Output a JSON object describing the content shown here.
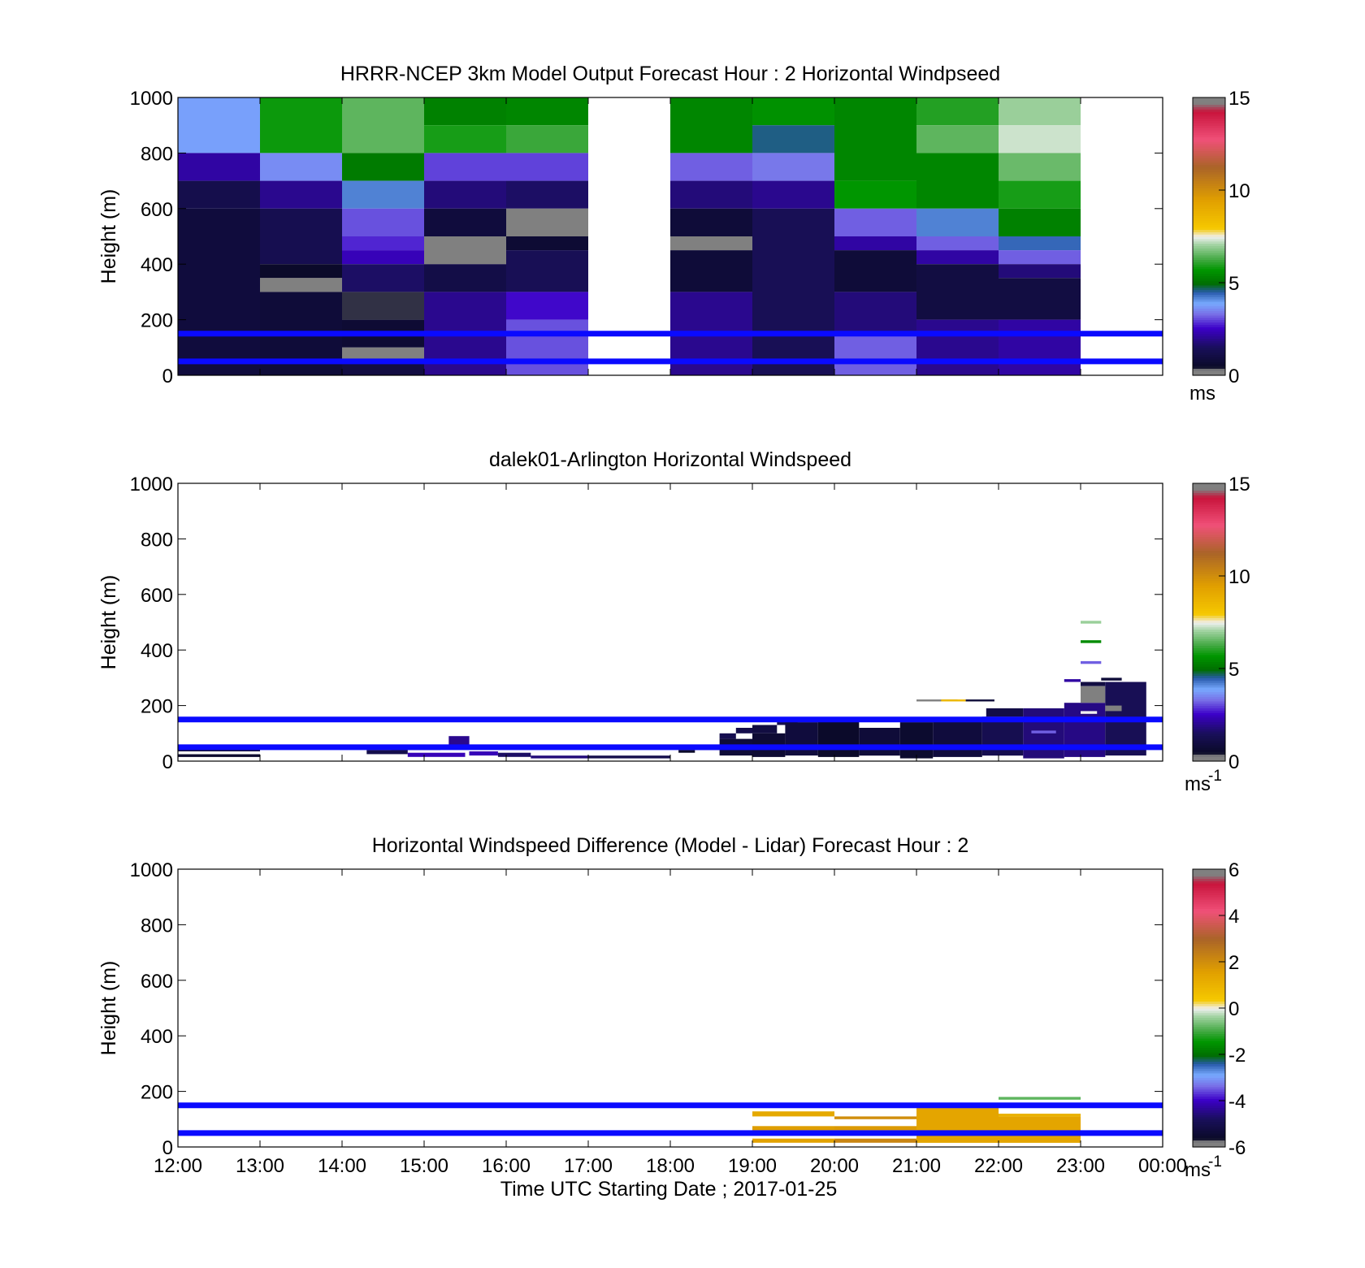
{
  "chart_data": [
    {
      "type": "heatmap",
      "title": "HRRR-NCEP 3km Model Output   Forecast Hour : 2 Horizontal Windpseed",
      "ylabel": "Height (m)",
      "xlabel": "",
      "ylim": [
        0,
        1000
      ],
      "xlim": [
        "12:00",
        "00:00"
      ],
      "yticks": [
        "0",
        "200",
        "400",
        "600",
        "800",
        "1000"
      ],
      "xticks": [],
      "colorbar": {
        "min": 0,
        "max": 15,
        "ticks": [
          "0",
          "5",
          "10",
          "15"
        ],
        "unit": "ms",
        "unit_sup": ""
      },
      "reference_heights_m": [
        50,
        150
      ],
      "cells": [
        {
          "t0": 0,
          "t1": 1,
          "h0": 800,
          "h1": 1000,
          "v": 3.8
        },
        {
          "t0": 0,
          "t1": 1,
          "h0": 700,
          "h1": 800,
          "v": 2.2
        },
        {
          "t0": 0,
          "t1": 1,
          "h0": 600,
          "h1": 700,
          "v": 1.2
        },
        {
          "t0": 0,
          "t1": 1,
          "h0": 0,
          "h1": 600,
          "v": 0.9
        },
        {
          "t0": 1,
          "t1": 2,
          "h0": 800,
          "h1": 1000,
          "v": 5.8
        },
        {
          "t0": 1,
          "t1": 2,
          "h0": 700,
          "h1": 800,
          "v": 3.6
        },
        {
          "t0": 1,
          "t1": 2,
          "h0": 600,
          "h1": 700,
          "v": 2.0
        },
        {
          "t0": 1,
          "t1": 2,
          "h0": 400,
          "h1": 600,
          "v": 1.3
        },
        {
          "t0": 1,
          "t1": 2,
          "h0": 350,
          "h1": 400,
          "v": 0.5
        },
        {
          "t0": 1,
          "t1": 2,
          "h0": 300,
          "h1": 350,
          "v": 0
        },
        {
          "t0": 1,
          "t1": 2,
          "h0": 0,
          "h1": 300,
          "v": 0.8
        },
        {
          "t0": 2,
          "t1": 3,
          "h0": 800,
          "h1": 1000,
          "v": 6.5
        },
        {
          "t0": 2,
          "t1": 3,
          "h0": 700,
          "h1": 800,
          "v": 5.2
        },
        {
          "t0": 2,
          "t1": 3,
          "h0": 600,
          "h1": 700,
          "v": 4.2
        },
        {
          "t0": 2,
          "t1": 3,
          "h0": 500,
          "h1": 600,
          "v": 3.1
        },
        {
          "t0": 2,
          "t1": 3,
          "h0": 450,
          "h1": 500,
          "v": 2.8
        },
        {
          "t0": 2,
          "t1": 3,
          "h0": 400,
          "h1": 450,
          "v": 2.4
        },
        {
          "t0": 2,
          "t1": 3,
          "h0": 300,
          "h1": 400,
          "v": 1.6
        },
        {
          "t0": 2,
          "t1": 3,
          "h0": 200,
          "h1": 300,
          "v": 0.4
        },
        {
          "t0": 2,
          "t1": 3,
          "h0": 100,
          "h1": 200,
          "v": 0.7
        },
        {
          "t0": 2,
          "t1": 3,
          "h0": 50,
          "h1": 100,
          "v": 0
        },
        {
          "t0": 2,
          "t1": 3,
          "h0": 0,
          "h1": 50,
          "v": 1.0
        },
        {
          "t0": 3,
          "t1": 4,
          "h0": 900,
          "h1": 1000,
          "v": 5.3
        },
        {
          "t0": 3,
          "t1": 4,
          "h0": 800,
          "h1": 900,
          "v": 5.9
        },
        {
          "t0": 3,
          "t1": 4,
          "h0": 700,
          "h1": 800,
          "v": 3.0
        },
        {
          "t0": 3,
          "t1": 4,
          "h0": 600,
          "h1": 700,
          "v": 1.8
        },
        {
          "t0": 3,
          "t1": 4,
          "h0": 500,
          "h1": 600,
          "v": 0.9
        },
        {
          "t0": 3,
          "t1": 4,
          "h0": 400,
          "h1": 500,
          "v": 0
        },
        {
          "t0": 3,
          "t1": 4,
          "h0": 300,
          "h1": 400,
          "v": 1.1
        },
        {
          "t0": 3,
          "t1": 4,
          "h0": 0,
          "h1": 300,
          "v": 2.0
        },
        {
          "t0": 4,
          "t1": 5,
          "h0": 900,
          "h1": 1000,
          "v": 5.4
        },
        {
          "t0": 4,
          "t1": 5,
          "h0": 800,
          "h1": 900,
          "v": 6.2
        },
        {
          "t0": 4,
          "t1": 5,
          "h0": 700,
          "h1": 800,
          "v": 3.0
        },
        {
          "t0": 4,
          "t1": 5,
          "h0": 600,
          "h1": 700,
          "v": 1.6
        },
        {
          "t0": 4,
          "t1": 5,
          "h0": 500,
          "h1": 600,
          "v": 0
        },
        {
          "t0": 4,
          "t1": 5,
          "h0": 450,
          "h1": 500,
          "v": 0.7
        },
        {
          "t0": 4,
          "t1": 5,
          "h0": 300,
          "h1": 450,
          "v": 1.4
        },
        {
          "t0": 4,
          "t1": 5,
          "h0": 200,
          "h1": 300,
          "v": 2.6
        },
        {
          "t0": 4,
          "t1": 5,
          "h0": 0,
          "h1": 200,
          "v": 3.1
        },
        {
          "t0": 6,
          "t1": 7,
          "h0": 800,
          "h1": 1000,
          "v": 5.4
        },
        {
          "t0": 6,
          "t1": 7,
          "h0": 700,
          "h1": 800,
          "v": 3.2
        },
        {
          "t0": 6,
          "t1": 7,
          "h0": 600,
          "h1": 700,
          "v": 1.8
        },
        {
          "t0": 6,
          "t1": 7,
          "h0": 500,
          "h1": 600,
          "v": 0.8
        },
        {
          "t0": 6,
          "t1": 7,
          "h0": 450,
          "h1": 500,
          "v": 0
        },
        {
          "t0": 6,
          "t1": 7,
          "h0": 300,
          "h1": 450,
          "v": 0.8
        },
        {
          "t0": 6,
          "t1": 7,
          "h0": 0,
          "h1": 300,
          "v": 2.0
        },
        {
          "t0": 7,
          "t1": 8,
          "h0": 900,
          "h1": 1000,
          "v": 5.6
        },
        {
          "t0": 7,
          "t1": 8,
          "h0": 800,
          "h1": 900,
          "v": 4.6
        },
        {
          "t0": 7,
          "t1": 8,
          "h0": 700,
          "h1": 800,
          "v": 3.4
        },
        {
          "t0": 7,
          "t1": 8,
          "h0": 600,
          "h1": 700,
          "v": 2.0
        },
        {
          "t0": 7,
          "t1": 8,
          "h0": 0,
          "h1": 600,
          "v": 1.4
        },
        {
          "t0": 8,
          "t1": 9,
          "h0": 700,
          "h1": 1000,
          "v": 5.4
        },
        {
          "t0": 8,
          "t1": 9,
          "h0": 600,
          "h1": 700,
          "v": 5.7
        },
        {
          "t0": 8,
          "t1": 9,
          "h0": 500,
          "h1": 600,
          "v": 3.2
        },
        {
          "t0": 8,
          "t1": 9,
          "h0": 450,
          "h1": 500,
          "v": 2.2
        },
        {
          "t0": 8,
          "t1": 9,
          "h0": 300,
          "h1": 450,
          "v": 0.8
        },
        {
          "t0": 8,
          "t1": 9,
          "h0": 150,
          "h1": 300,
          "v": 1.8
        },
        {
          "t0": 8,
          "t1": 9,
          "h0": 0,
          "h1": 150,
          "v": 3.2
        },
        {
          "t0": 9,
          "t1": 10,
          "h0": 900,
          "h1": 1000,
          "v": 6.0
        },
        {
          "t0": 9,
          "t1": 10,
          "h0": 800,
          "h1": 900,
          "v": 6.5
        },
        {
          "t0": 9,
          "t1": 10,
          "h0": 600,
          "h1": 800,
          "v": 5.4
        },
        {
          "t0": 9,
          "t1": 10,
          "h0": 500,
          "h1": 600,
          "v": 4.2
        },
        {
          "t0": 9,
          "t1": 10,
          "h0": 450,
          "h1": 500,
          "v": 3.2
        },
        {
          "t0": 9,
          "t1": 10,
          "h0": 400,
          "h1": 450,
          "v": 2.2
        },
        {
          "t0": 9,
          "t1": 10,
          "h0": 200,
          "h1": 400,
          "v": 1.0
        },
        {
          "t0": 9,
          "t1": 10,
          "h0": 0,
          "h1": 200,
          "v": 2.0
        },
        {
          "t0": 10,
          "t1": 11,
          "h0": 900,
          "h1": 1000,
          "v": 7.0
        },
        {
          "t0": 10,
          "t1": 11,
          "h0": 800,
          "h1": 900,
          "v": 7.3
        },
        {
          "t0": 10,
          "t1": 11,
          "h0": 700,
          "h1": 800,
          "v": 6.6
        },
        {
          "t0": 10,
          "t1": 11,
          "h0": 600,
          "h1": 700,
          "v": 5.9
        },
        {
          "t0": 10,
          "t1": 11,
          "h0": 500,
          "h1": 600,
          "v": 5.3
        },
        {
          "t0": 10,
          "t1": 11,
          "h0": 450,
          "h1": 500,
          "v": 4.4
        },
        {
          "t0": 10,
          "t1": 11,
          "h0": 400,
          "h1": 450,
          "v": 3.2
        },
        {
          "t0": 10,
          "t1": 11,
          "h0": 350,
          "h1": 400,
          "v": 1.8
        },
        {
          "t0": 10,
          "t1": 11,
          "h0": 200,
          "h1": 350,
          "v": 1.0
        },
        {
          "t0": 10,
          "t1": 11,
          "h0": 0,
          "h1": 200,
          "v": 2.2
        }
      ]
    },
    {
      "type": "heatmap",
      "title": "dalek01-Arlington  Horizontal Windspeed",
      "ylabel": "Height (m)",
      "xlabel": "",
      "ylim": [
        0,
        1000
      ],
      "xlim": [
        "12:00",
        "00:00"
      ],
      "yticks": [
        "0",
        "200",
        "400",
        "600",
        "800",
        "1000"
      ],
      "xticks": [],
      "colorbar": {
        "min": 0,
        "max": 15,
        "ticks": [
          "0",
          "5",
          "10",
          "15"
        ],
        "unit": "ms",
        "unit_sup": "-1"
      },
      "reference_heights_m": [
        50,
        150
      ],
      "cells": [
        {
          "t0": 0,
          "t1": 1,
          "h0": 15,
          "h1": 25,
          "v": 0.6
        },
        {
          "t0": 0,
          "t1": 1,
          "h0": 35,
          "h1": 45,
          "v": 1.0
        },
        {
          "t0": 2.3,
          "t1": 2.8,
          "h0": 25,
          "h1": 40,
          "v": 1.2
        },
        {
          "t0": 2.6,
          "t1": 3.2,
          "h0": 40,
          "h1": 55,
          "v": 1.5
        },
        {
          "t0": 2.8,
          "t1": 3.5,
          "h0": 15,
          "h1": 30,
          "v": 2.4
        },
        {
          "t0": 3.3,
          "t1": 3.55,
          "h0": 50,
          "h1": 90,
          "v": 2.0
        },
        {
          "t0": 3.55,
          "t1": 3.9,
          "h0": 20,
          "h1": 35,
          "v": 2.4
        },
        {
          "t0": 3.9,
          "t1": 4.3,
          "h0": 15,
          "h1": 30,
          "v": 1.6
        },
        {
          "t0": 4.3,
          "t1": 5.0,
          "h0": 10,
          "h1": 20,
          "v": 1.8
        },
        {
          "t0": 5.0,
          "t1": 6.0,
          "h0": 10,
          "h1": 20,
          "v": 1.2
        },
        {
          "t0": 6.1,
          "t1": 6.3,
          "h0": 30,
          "h1": 40,
          "v": 0.5
        },
        {
          "t0": 6.3,
          "t1": 6.6,
          "h0": 40,
          "h1": 60,
          "v": 1.6
        },
        {
          "t0": 6.6,
          "t1": 6.8,
          "h0": 80,
          "h1": 100,
          "v": 1.3
        },
        {
          "t0": 6.6,
          "t1": 7.0,
          "h0": 20,
          "h1": 80,
          "v": 0.8
        },
        {
          "t0": 6.8,
          "t1": 7.0,
          "h0": 100,
          "h1": 120,
          "v": 1.2
        },
        {
          "t0": 7.0,
          "t1": 7.4,
          "h0": 15,
          "h1": 100,
          "v": 0.7
        },
        {
          "t0": 7.0,
          "t1": 7.3,
          "h0": 100,
          "h1": 130,
          "v": 1.0
        },
        {
          "t0": 7.3,
          "t1": 7.55,
          "h0": 130,
          "h1": 150,
          "v": 1.2
        },
        {
          "t0": 7.4,
          "t1": 7.8,
          "h0": 20,
          "h1": 140,
          "v": 0.9
        },
        {
          "t0": 7.8,
          "t1": 8.3,
          "h0": 15,
          "h1": 145,
          "v": 0.5
        },
        {
          "t0": 8.3,
          "t1": 8.8,
          "h0": 20,
          "h1": 120,
          "v": 0.8
        },
        {
          "t0": 8.8,
          "t1": 9.2,
          "h0": 10,
          "h1": 140,
          "v": 0.6
        },
        {
          "t0": 8.5,
          "t1": 9.0,
          "h0": 50,
          "h1": 60,
          "v": 0
        },
        {
          "t0": 9.2,
          "t1": 9.8,
          "h0": 15,
          "h1": 150,
          "v": 0.9
        },
        {
          "t0": 9.0,
          "t1": 9.5,
          "h0": 215,
          "h1": 222,
          "v": 0
        },
        {
          "t0": 9.3,
          "t1": 9.6,
          "h0": 215,
          "h1": 222,
          "v": 8.5
        },
        {
          "t0": 9.6,
          "t1": 9.95,
          "h0": 215,
          "h1": 222,
          "v": 0.8
        },
        {
          "t0": 9.8,
          "t1": 10.3,
          "h0": 20,
          "h1": 160,
          "v": 1.3
        },
        {
          "t0": 9.85,
          "t1": 10.3,
          "h0": 160,
          "h1": 190,
          "v": 1.1
        },
        {
          "t0": 10.3,
          "t1": 10.8,
          "h0": 10,
          "h1": 190,
          "v": 1.8
        },
        {
          "t0": 10.4,
          "t1": 10.7,
          "h0": 100,
          "h1": 110,
          "v": 3.2
        },
        {
          "t0": 10.8,
          "t1": 11.3,
          "h0": 15,
          "h1": 210,
          "v": 1.9
        },
        {
          "t0": 10.8,
          "t1": 11.0,
          "h0": 285,
          "h1": 295,
          "v": 2.2
        },
        {
          "t0": 11.0,
          "t1": 11.3,
          "h0": 210,
          "h1": 270,
          "v": 0
        },
        {
          "t0": 11.0,
          "t1": 11.2,
          "h0": 170,
          "h1": 180,
          "v": 7.5
        },
        {
          "t0": 11.0,
          "t1": 11.3,
          "h0": 50,
          "h1": 60,
          "v": 0
        },
        {
          "t0": 11.0,
          "t1": 11.3,
          "h0": 270,
          "h1": 285,
          "v": 1.0
        },
        {
          "t0": 11.25,
          "t1": 11.5,
          "h0": 290,
          "h1": 300,
          "v": 0.8
        },
        {
          "t0": 11.3,
          "t1": 11.8,
          "h0": 20,
          "h1": 285,
          "v": 1.4
        },
        {
          "t0": 11.3,
          "t1": 11.5,
          "h0": 180,
          "h1": 200,
          "v": 0
        },
        {
          "t0": 11.0,
          "t1": 11.25,
          "h0": 495,
          "h1": 505,
          "v": 7.0
        },
        {
          "t0": 11.0,
          "t1": 11.25,
          "h0": 425,
          "h1": 435,
          "v": 5.5
        },
        {
          "t0": 11.0,
          "t1": 11.25,
          "h0": 350,
          "h1": 360,
          "v": 3.2
        }
      ]
    },
    {
      "type": "heatmap",
      "title": "Horizontal Windspeed Difference (Model - Lidar) Forecast Hour : 2",
      "ylabel": "Height (m)",
      "xlabel": "Time UTC  Starting Date ; 2017-01-25",
      "ylim": [
        0,
        1000
      ],
      "xlim": [
        "12:00",
        "00:00"
      ],
      "yticks": [
        "0",
        "200",
        "400",
        "600",
        "800",
        "1000"
      ],
      "xticks": [
        "12:00",
        "13:00",
        "14:00",
        "15:00",
        "16:00",
        "17:00",
        "18:00",
        "19:00",
        "20:00",
        "21:00",
        "22:00",
        "23:00",
        "00:00"
      ],
      "colorbar": {
        "min": -6,
        "max": 6,
        "ticks": [
          "-6",
          "-4",
          "-2",
          "0",
          "2",
          "4",
          "6"
        ],
        "unit": "ms",
        "unit_sup": "-1"
      },
      "reference_heights_m": [
        50,
        150
      ],
      "cells": [
        {
          "t0": 7,
          "t1": 8,
          "h0": 110,
          "h1": 128,
          "v": 1.3
        },
        {
          "t0": 7,
          "t1": 8,
          "h0": 60,
          "h1": 75,
          "v": 1.6
        },
        {
          "t0": 7,
          "t1": 8,
          "h0": 15,
          "h1": 30,
          "v": 1.5
        },
        {
          "t0": 8,
          "t1": 9,
          "h0": 100,
          "h1": 110,
          "v": 2.0
        },
        {
          "t0": 8,
          "t1": 9,
          "h0": 60,
          "h1": 75,
          "v": 1.7
        },
        {
          "t0": 8,
          "t1": 9,
          "h0": 15,
          "h1": 30,
          "v": 2.2
        },
        {
          "t0": 9,
          "t1": 10,
          "h0": 15,
          "h1": 140,
          "v": 1.4
        },
        {
          "t0": 10,
          "t1": 11,
          "h0": 170,
          "h1": 180,
          "v": -0.8
        },
        {
          "t0": 10,
          "t1": 11,
          "h0": 15,
          "h1": 110,
          "v": 1.4
        },
        {
          "t0": 10,
          "t1": 11,
          "h0": 110,
          "h1": 120,
          "v": 1.0
        }
      ]
    }
  ]
}
